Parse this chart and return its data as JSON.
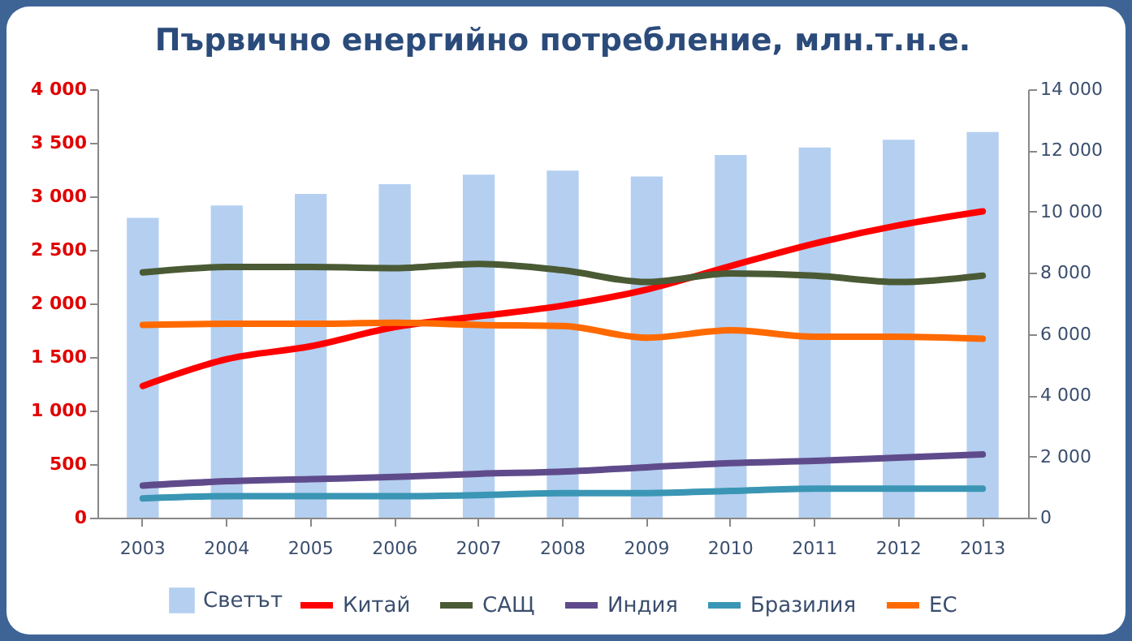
{
  "chart_data": {
    "type": "line",
    "title": "Първично енергийно потребление, млн.т.н.е.",
    "categories": [
      "2003",
      "2004",
      "2005",
      "2006",
      "2007",
      "2008",
      "2009",
      "2010",
      "2011",
      "2012",
      "2013"
    ],
    "series": [
      {
        "name": "Светът",
        "type": "bar",
        "axis": "y2",
        "color": "#b4cff0",
        "values": [
          9800,
          10200,
          10580,
          10900,
          11210,
          11340,
          11150,
          11850,
          12100,
          12350,
          12600
        ]
      },
      {
        "name": "Китай",
        "color": "#ff0000",
        "values": [
          1230,
          1480,
          1600,
          1780,
          1880,
          1980,
          2130,
          2350,
          2560,
          2730,
          2860
        ]
      },
      {
        "name": "САЩ",
        "color": "#4a5a35",
        "values": [
          2290,
          2340,
          2340,
          2330,
          2370,
          2310,
          2200,
          2280,
          2260,
          2200,
          2260
        ]
      },
      {
        "name": "Индия",
        "color": "#5f4b8b",
        "values": [
          300,
          340,
          360,
          380,
          410,
          430,
          470,
          510,
          530,
          560,
          590
        ]
      },
      {
        "name": "Бразилия",
        "color": "#3a96b4",
        "values": [
          180,
          200,
          200,
          200,
          210,
          230,
          230,
          250,
          270,
          270,
          270
        ]
      },
      {
        "name": "ЕС",
        "color": "#ff6a00",
        "values": [
          1800,
          1810,
          1810,
          1820,
          1800,
          1790,
          1680,
          1750,
          1690,
          1690,
          1670
        ]
      }
    ],
    "ylim": [
      0,
      4000
    ],
    "yticks": [
      0,
      500,
      {
        "value": 1000,
        "label": "1 000"
      },
      {
        "value": 1500,
        "label": "1 500"
      },
      {
        "value": 2000,
        "label": "2 000"
      },
      {
        "value": 2500,
        "label": "2 500"
      },
      {
        "value": 3000,
        "label": "3 000"
      },
      {
        "value": 3500,
        "label": "3 500"
      },
      {
        "value": 4000,
        "label": "4 000"
      }
    ],
    "y2lim": [
      0,
      14000
    ],
    "y2ticks": [
      0,
      {
        "value": 2000,
        "label": "2 000"
      },
      {
        "value": 4000,
        "label": "4 000"
      },
      {
        "value": 6000,
        "label": "6 000"
      },
      {
        "value": 8000,
        "label": "8 000"
      },
      {
        "value": 10000,
        "label": "10 000"
      },
      {
        "value": 12000,
        "label": "12 000"
      },
      {
        "value": 14000,
        "label": "14 000"
      }
    ],
    "legend": "bottom",
    "grid": false,
    "line_style": "solid"
  }
}
